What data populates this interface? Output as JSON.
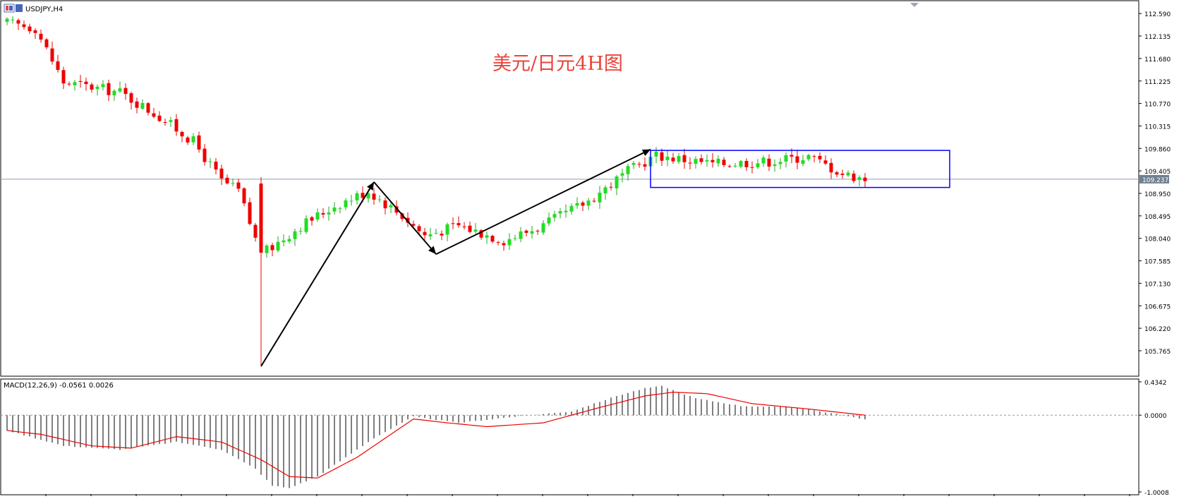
{
  "window": {
    "symbol_label": "USDJPY,H4"
  },
  "annotation": {
    "text": "美元/日元4H图",
    "color": "#e8443a"
  },
  "colors": {
    "bull": "#22dd22",
    "bear": "#ee0000",
    "wick": "#22aa22",
    "arrow": "#000000",
    "box": "#0000ff",
    "price_line": "#8ca0b4",
    "macd_signal": "#ee0000",
    "macd_hist": "#000000",
    "price_tag_bg": "#708090"
  },
  "chart_data": [
    {
      "type": "candlestick",
      "title": "USDJPY,H4",
      "ylim": [
        105.25,
        112.85
      ],
      "yticks": [
        "112.590",
        "112.135",
        "111.680",
        "111.225",
        "110.770",
        "110.315",
        "109.860",
        "109.405",
        "108.950",
        "108.495",
        "108.040",
        "107.585",
        "107.130",
        "106.675",
        "106.220",
        "105.765"
      ],
      "current_price": "109.237",
      "series_keypoints": [
        [
          0,
          112.4
        ],
        [
          5,
          112.3
        ],
        [
          10,
          111.2
        ],
        [
          20,
          111.0
        ],
        [
          27,
          110.5
        ],
        [
          33,
          110.0
        ],
        [
          38,
          109.2
        ],
        [
          41,
          109.0
        ],
        [
          45,
          107.7
        ],
        [
          52,
          108.3
        ],
        [
          58,
          108.7
        ],
        [
          64,
          109.0
        ],
        [
          70,
          108.5
        ],
        [
          74,
          108.1
        ],
        [
          80,
          108.3
        ],
        [
          88,
          108.0
        ],
        [
          95,
          108.3
        ],
        [
          103,
          108.8
        ],
        [
          110,
          109.4
        ],
        [
          115,
          109.72
        ],
        [
          125,
          109.55
        ],
        [
          135,
          109.6
        ],
        [
          142,
          109.7
        ],
        [
          148,
          109.35
        ],
        [
          152,
          109.24
        ]
      ],
      "rectangle": {
        "start_index": 114,
        "end_index": 167,
        "y_top": 109.82,
        "y_bottom": 109.07
      },
      "arrows": [
        {
          "from": [
            45,
            105.45
          ],
          "to": [
            65,
            109.18
          ]
        },
        {
          "from": [
            65,
            109.18
          ],
          "to": [
            76,
            107.72
          ]
        },
        {
          "from": [
            76,
            107.72
          ],
          "to": [
            114,
            109.84
          ]
        }
      ]
    },
    {
      "type": "bar+line",
      "title": "MACD(12,26,9) -0.0561 0.0026",
      "ylim": [
        -1.0008,
        0.4342
      ],
      "yticks": [
        "0.4342",
        "0.0000",
        "-1.0008"
      ],
      "histogram_keypoints": [
        [
          0,
          -0.2
        ],
        [
          10,
          -0.4
        ],
        [
          20,
          -0.45
        ],
        [
          30,
          -0.35
        ],
        [
          38,
          -0.45
        ],
        [
          44,
          -0.7
        ],
        [
          47,
          -0.92
        ],
        [
          50,
          -0.95
        ],
        [
          55,
          -0.8
        ],
        [
          65,
          -0.3
        ],
        [
          72,
          -0.02
        ],
        [
          80,
          -0.1
        ],
        [
          90,
          -0.02
        ],
        [
          100,
          0.05
        ],
        [
          108,
          0.25
        ],
        [
          113,
          0.35
        ],
        [
          116,
          0.38
        ],
        [
          122,
          0.22
        ],
        [
          130,
          0.12
        ],
        [
          140,
          0.1
        ],
        [
          148,
          0.0
        ],
        [
          152,
          -0.06
        ]
      ],
      "signal_keypoints": [
        [
          0,
          -0.2
        ],
        [
          6,
          -0.25
        ],
        [
          15,
          -0.4
        ],
        [
          22,
          -0.43
        ],
        [
          30,
          -0.28
        ],
        [
          38,
          -0.35
        ],
        [
          45,
          -0.58
        ],
        [
          50,
          -0.8
        ],
        [
          55,
          -0.82
        ],
        [
          62,
          -0.55
        ],
        [
          72,
          -0.05
        ],
        [
          78,
          -0.1
        ],
        [
          85,
          -0.15
        ],
        [
          95,
          -0.1
        ],
        [
          105,
          0.1
        ],
        [
          113,
          0.25
        ],
        [
          118,
          0.3
        ],
        [
          124,
          0.28
        ],
        [
          132,
          0.15
        ],
        [
          142,
          0.08
        ],
        [
          152,
          0.0
        ]
      ]
    }
  ]
}
